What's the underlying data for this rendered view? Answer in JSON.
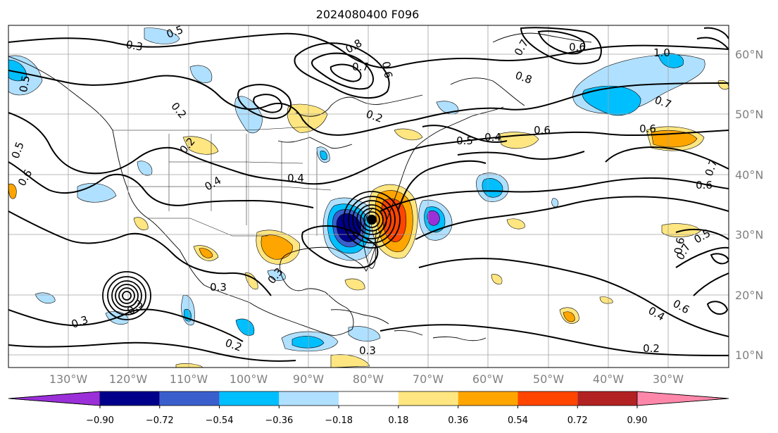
{
  "title": "2024080400 F096",
  "lon_labels": [
    "130°W",
    "120°W",
    "110°W",
    "100°W",
    "90°W",
    "80°W",
    "70°W",
    "60°W",
    "50°W",
    "40°W",
    "30°W"
  ],
  "lat_labels": [
    "60°N",
    "50°N",
    "40°N",
    "30°N",
    "20°N",
    "10°N"
  ],
  "colorbar": {
    "ticks": [
      "−0.90",
      "−0.72",
      "−0.54",
      "−0.36",
      "−0.18",
      "0.18",
      "0.36",
      "0.54",
      "0.72",
      "0.90"
    ],
    "colors": [
      "#9b30d9",
      "#00008b",
      "#3a5fcd",
      "#00bfff",
      "#b0e0ff",
      "#ffffff",
      "#ffe680",
      "#ffa500",
      "#ff4500",
      "#b22222",
      "#ff88aa"
    ]
  },
  "contour_labels": [
    "0.5",
    "0.3",
    "0.8",
    "0.7",
    "0.6",
    "0.7",
    "0.6",
    "1.0",
    "0.8",
    "0.7",
    "0.6",
    "0.5",
    "0.4",
    "0.2",
    "0.2",
    "0.4",
    "0.4",
    "0.5",
    "0.6",
    "0.7",
    "0.6",
    "0.7",
    "0.5",
    "0.6",
    "0.5",
    "0.6",
    "0.4",
    "0.2",
    "0.3",
    "0.3",
    "0.2",
    "0.3",
    "0.3",
    "0.3",
    "0.2",
    "0.6"
  ]
}
